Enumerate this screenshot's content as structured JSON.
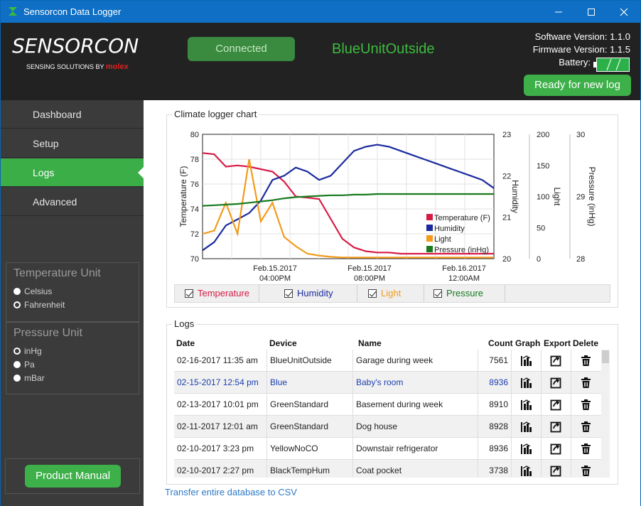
{
  "window": {
    "title": "Sensorcon Data Logger",
    "minimize_icon": "minimize-icon",
    "maximize_icon": "maximize-icon",
    "close_icon": "close-icon"
  },
  "header": {
    "logo_text": "SENSORCON",
    "logo_tagline": "SENSING SOLUTIONS BY",
    "logo_partner": "molex",
    "status_button": "Connected",
    "device_name": "BlueUnitOutside",
    "software_version": "Software Version: 1.1.0",
    "firmware_version": "Firmware Version: 1.1.5",
    "battery_label": "Battery:",
    "ready_button": "Ready for new log"
  },
  "sidebar": {
    "items": [
      {
        "label": "Dashboard",
        "active": false
      },
      {
        "label": "Setup",
        "active": false
      },
      {
        "label": "Logs",
        "active": true
      },
      {
        "label": "Advanced",
        "active": false
      }
    ],
    "temperature_unit": {
      "title": "Temperature Unit",
      "options": [
        "Celsius",
        "Fahrenheit"
      ],
      "selected": "Fahrenheit"
    },
    "pressure_unit": {
      "title": "Pressure Unit",
      "options": [
        "inHg",
        "Pa",
        "mBar"
      ],
      "selected": "inHg"
    },
    "manual_button": "Product Manual"
  },
  "chart_section": {
    "title": "Climate logger chart",
    "toggles": [
      {
        "label": "Temperature",
        "checked": true,
        "color": "#d81b45"
      },
      {
        "label": "Humidity",
        "checked": true,
        "color": "#1a2a9e"
      },
      {
        "label": "Light",
        "checked": true,
        "color": "#f39b1b"
      },
      {
        "label": "Pressure",
        "checked": true,
        "color": "#177a1f"
      }
    ]
  },
  "chart_data": {
    "type": "line",
    "x_ticks": [
      "Feb.15.2017",
      "04:00PM",
      "Feb.15.2017",
      "08:00PM",
      "Feb.16.2017",
      "12:00AM"
    ],
    "axes": {
      "temperature": {
        "label": "Temperature (F)",
        "ylim": [
          70,
          80
        ],
        "ticks": [
          "80",
          "78",
          "76",
          "74",
          "72",
          "70"
        ]
      },
      "humidity": {
        "label": "Humidity",
        "ylim": [
          20,
          23
        ],
        "ticks": [
          "23",
          "22",
          "21",
          "20"
        ]
      },
      "light": {
        "label": "Light",
        "ylim": [
          0,
          200
        ],
        "ticks": [
          "200",
          "150",
          "100",
          "50",
          "0"
        ]
      },
      "pressure": {
        "label": "Pressure (inHg)",
        "ylim": [
          28,
          30
        ],
        "ticks": [
          "30",
          "29",
          "28"
        ]
      }
    },
    "legend": {
      "position": "bottom-right",
      "entries": [
        "Temperature (F)",
        "Humidity",
        "Light",
        "Pressure (inHg)"
      ]
    },
    "grid": true,
    "x": [
      0,
      4,
      8,
      12,
      16,
      20,
      24,
      28,
      32,
      36,
      40,
      44,
      48,
      52,
      56,
      60,
      64,
      68,
      72,
      76,
      80,
      84,
      88,
      92,
      96,
      100
    ],
    "series": [
      {
        "name": "Temperature (F)",
        "color": "#d81b45",
        "values": [
          78.5,
          78.4,
          77.4,
          77.5,
          77.4,
          77.2,
          77.0,
          76.2,
          75.0,
          74.9,
          74.8,
          73.2,
          71.6,
          70.9,
          70.6,
          70.5,
          70.5,
          70.4,
          70.4,
          70.4,
          70.4,
          70.4,
          70.4,
          70.4,
          70.4,
          70.4
        ]
      },
      {
        "name": "Humidity",
        "color": "#1a2a9e",
        "values": [
          20.2,
          20.4,
          20.8,
          20.95,
          21.1,
          21.4,
          21.9,
          22.0,
          22.2,
          22.1,
          21.9,
          22.0,
          22.3,
          22.6,
          22.7,
          22.75,
          22.7,
          22.6,
          22.5,
          22.4,
          22.3,
          22.2,
          22.1,
          22.0,
          21.9,
          21.7
        ]
      },
      {
        "name": "Light",
        "color": "#f39b1b",
        "values": [
          40,
          45,
          90,
          40,
          160,
          60,
          90,
          35,
          20,
          8,
          5,
          3,
          2,
          2,
          2,
          2,
          2,
          2,
          2,
          2,
          2,
          2,
          2,
          2,
          2,
          2
        ]
      },
      {
        "name": "Pressure (inHg)",
        "color": "#177a1f",
        "values": [
          28.85,
          28.86,
          28.87,
          28.88,
          28.9,
          28.92,
          28.94,
          28.97,
          28.99,
          29.0,
          29.01,
          29.02,
          29.02,
          29.03,
          29.03,
          29.04,
          29.04,
          29.04,
          29.04,
          29.04,
          29.04,
          29.04,
          29.04,
          29.04,
          29.04,
          29.04
        ]
      }
    ]
  },
  "logs": {
    "title": "Logs",
    "columns": [
      "Date",
      "Device",
      "Name",
      "Count",
      "Graph",
      "Export",
      "Delete"
    ],
    "rows": [
      {
        "date": "02-16-2017 11:35 am",
        "device": "BlueUnitOutside",
        "name": "Garage during week",
        "count": "7561",
        "selected": false
      },
      {
        "date": "02-15-2017 12:54 pm",
        "device": "Blue",
        "name": "Baby's room",
        "count": "8936",
        "selected": true
      },
      {
        "date": "02-13-2017 10:01 pm",
        "device": "GreenStandard",
        "name": "Basement during week",
        "count": "8910",
        "selected": false
      },
      {
        "date": "02-11-2017 12:01 am",
        "device": "GreenStandard",
        "name": "Dog house",
        "count": "8928",
        "selected": false
      },
      {
        "date": "02-10-2017 3:23 pm",
        "device": "YellowNoCO",
        "name": "Downstair refrigerator",
        "count": "8936",
        "selected": false
      },
      {
        "date": "02-10-2017 2:27 pm",
        "device": "BlackTempHum",
        "name": "Coat pocket",
        "count": "3738",
        "selected": false
      }
    ],
    "transfer_link": "Transfer entire database to CSV"
  }
}
